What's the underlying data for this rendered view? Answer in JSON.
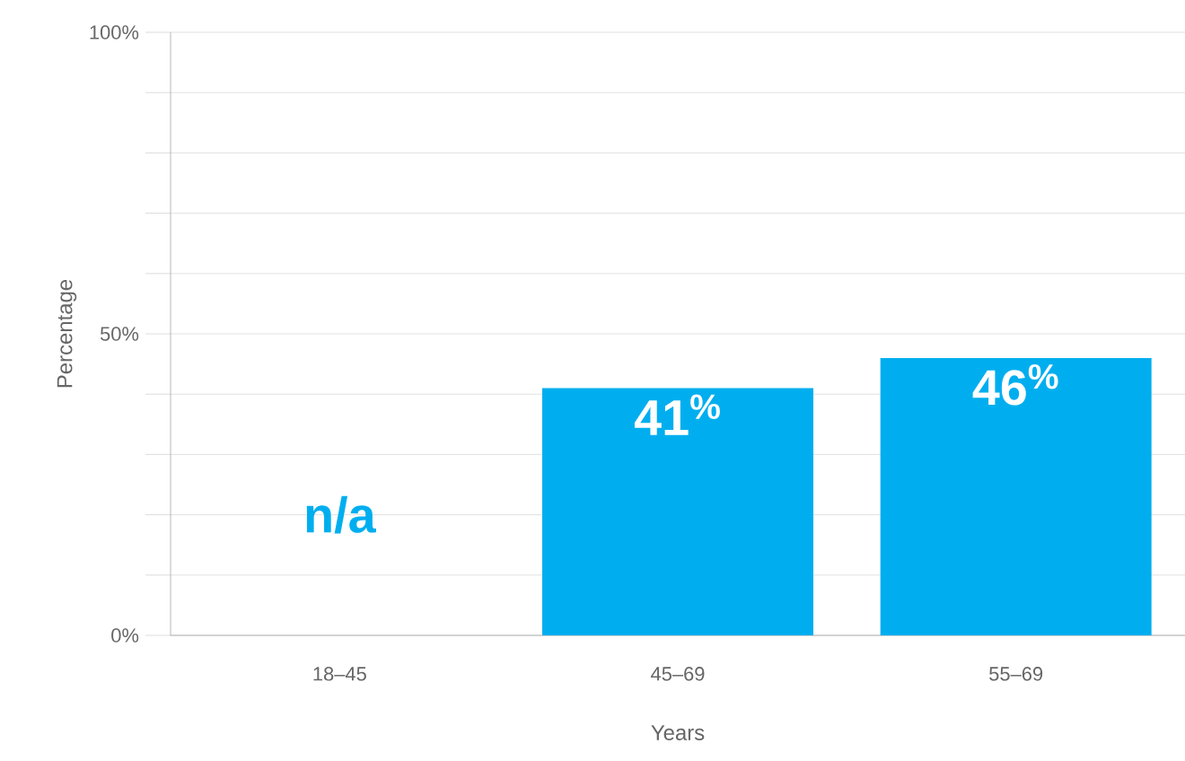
{
  "chart_data": {
    "type": "bar",
    "xlabel": "Years",
    "ylabel": "Percentage",
    "categories": [
      "18–45",
      "45–69",
      "55–69"
    ],
    "values": [
      null,
      41,
      46
    ],
    "value_labels": [
      "n/a",
      "41$^{%}$",
      "46$^{%}$"
    ],
    "color": "#00aeef",
    "ylim": [
      0,
      100
    ],
    "yticks": [
      {
        "value": 0,
        "label": "0%"
      },
      {
        "value": 10,
        "label": null
      },
      {
        "value": 20,
        "label": null
      },
      {
        "value": 30,
        "label": null
      },
      {
        "value": 40,
        "label": null
      },
      {
        "value": 50,
        "label": "50%"
      },
      {
        "value": 60,
        "label": null
      },
      {
        "value": 70,
        "label": null
      },
      {
        "value": 80,
        "label": null
      },
      {
        "value": 90,
        "label": null
      },
      {
        "value": 100,
        "label": "100%"
      }
    ],
    "grid": "y"
  }
}
